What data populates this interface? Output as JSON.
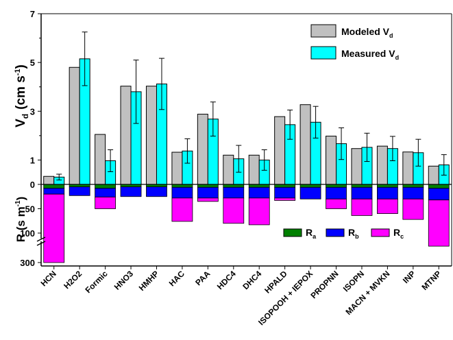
{
  "chart_data": {
    "type": "bar",
    "categories": [
      "HCN",
      "H2O2",
      "Formic",
      "HNO3",
      "HMHP",
      "HAC",
      "PAA",
      "HDC4",
      "DHC4",
      "HPALD",
      "ISOPOOH + IEPOX",
      "PROPNN",
      "ISOPN",
      "MACN + MVKN",
      "INP",
      "MTNP"
    ],
    "top_panel": {
      "ylabel_main": "V",
      "ylabel_sub": "d",
      "ylabel_unit": "(cm s",
      "ylabel_exp": "-1",
      "ylabel_close": ")",
      "yticks": [
        "0",
        "1",
        "3",
        "5",
        "7"
      ],
      "ylim": [
        0,
        7
      ],
      "series": [
        {
          "name_main": "Modeled V",
          "name_sub": "d",
          "color": "#c0c0c0",
          "values": [
            0.33,
            4.8,
            2.05,
            4.03,
            4.03,
            1.32,
            2.88,
            1.2,
            1.2,
            2.78,
            3.27,
            1.98,
            1.47,
            1.57,
            1.33,
            0.75
          ]
        },
        {
          "name_main": "Measured V",
          "name_sub": "d",
          "color": "#00ffff",
          "values": [
            0.3,
            5.15,
            0.97,
            3.8,
            4.12,
            1.37,
            2.68,
            1.05,
            1.0,
            2.45,
            2.55,
            1.67,
            1.52,
            1.47,
            1.3,
            0.8
          ],
          "errors": [
            0.12,
            1.1,
            0.45,
            1.3,
            1.05,
            0.5,
            0.7,
            0.55,
            0.42,
            0.6,
            0.65,
            0.65,
            0.58,
            0.5,
            0.55,
            0.42
          ]
        }
      ]
    },
    "bottom_panel": {
      "ylabel_main": "R (s m",
      "ylabel_exp": "-1",
      "ylabel_close": ")",
      "yticks": [
        "0",
        "50",
        "100",
        "300"
      ],
      "axis_break": true,
      "stacked": true,
      "series": [
        {
          "name_main": "R",
          "name_sub": "a",
          "color": "#008000",
          "values": [
            8,
            5,
            8,
            5,
            5,
            6,
            6,
            6,
            6,
            6,
            6,
            6,
            6,
            6,
            6,
            8
          ]
        },
        {
          "name_main": "R",
          "name_sub": "b",
          "color": "#0000ff",
          "values": [
            12,
            18,
            18,
            20,
            20,
            22,
            22,
            22,
            22,
            22,
            24,
            24,
            24,
            24,
            24,
            24
          ]
        },
        {
          "name_main": "R",
          "name_sub": "c",
          "color": "#ff00ff",
          "values": [
            300,
            0,
            24,
            0,
            0,
            48,
            7,
            52,
            55,
            5,
            0,
            20,
            34,
            30,
            42,
            100
          ]
        }
      ]
    }
  }
}
